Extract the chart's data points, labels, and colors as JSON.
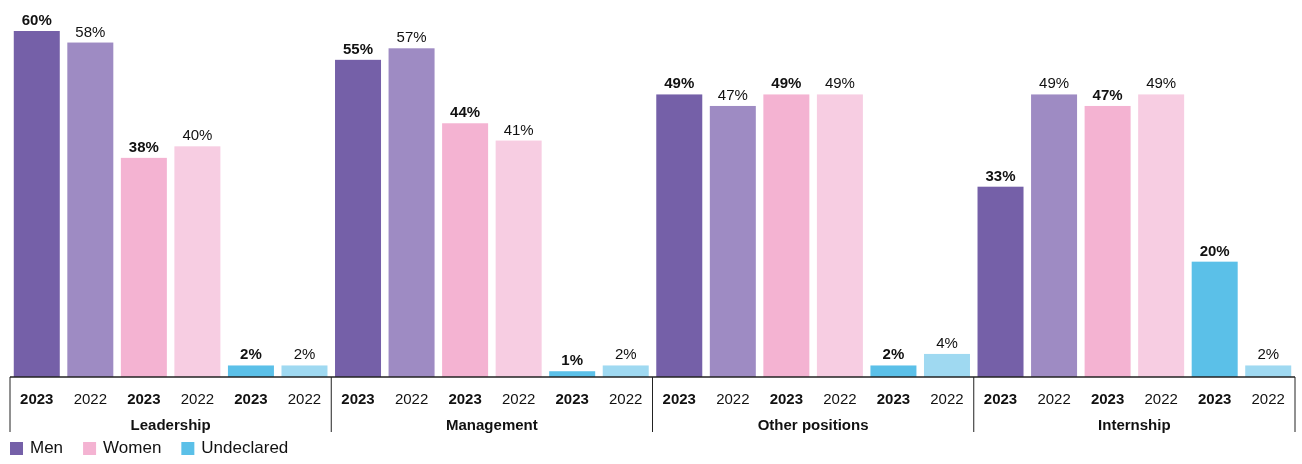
{
  "chart_data": {
    "type": "bar",
    "categories": [
      "2023",
      "2022",
      "2023",
      "2022",
      "2023",
      "2022",
      "2023",
      "2022",
      "2023",
      "2022",
      "2023",
      "2022",
      "2023",
      "2022",
      "2023",
      "2022",
      "2023",
      "2022",
      "2023",
      "2022",
      "2023",
      "2022",
      "2023",
      "2022"
    ],
    "series": [
      {
        "name": "Men",
        "color": "#7560a8",
        "colors": [
          "#7560a8",
          "#9e8bc3",
          null,
          null,
          null,
          null,
          "#7560a8",
          "#9e8bc3",
          null,
          null,
          null,
          null,
          "#7560a8",
          "#9e8bc3",
          null,
          null,
          null,
          null,
          "#7560a8",
          "#9e8bc3",
          null,
          null,
          null,
          null
        ],
        "values": [
          60,
          58,
          null,
          null,
          null,
          null,
          55,
          57,
          null,
          null,
          null,
          null,
          49,
          47,
          null,
          null,
          null,
          null,
          33,
          49,
          null,
          null,
          null,
          null
        ],
        "value_labels": [
          "60%",
          "58%",
          null,
          null,
          null,
          null,
          "55%",
          "57%",
          null,
          null,
          null,
          null,
          "49%",
          "47%",
          null,
          null,
          null,
          null,
          "33%",
          "49%",
          null,
          null,
          null,
          null
        ]
      },
      {
        "name": "Women",
        "color": "#f4b3d2",
        "colors": [
          null,
          null,
          "#f4b3d2",
          "#f7cde2",
          null,
          null,
          null,
          null,
          "#f4b3d2",
          "#f7cde2",
          null,
          null,
          null,
          null,
          "#f4b3d2",
          "#f7cde2",
          null,
          null,
          null,
          null,
          "#f4b3d2",
          "#f7cde2",
          null,
          null
        ],
        "values": [
          null,
          null,
          38,
          40,
          null,
          null,
          null,
          null,
          44,
          41,
          null,
          null,
          null,
          null,
          49,
          49,
          null,
          null,
          null,
          null,
          47,
          49,
          null,
          null
        ],
        "value_labels": [
          null,
          null,
          "38%",
          "40%",
          null,
          null,
          null,
          null,
          "44%",
          "41%",
          null,
          null,
          null,
          null,
          "49%",
          "49%",
          null,
          null,
          null,
          null,
          "47%",
          "49%",
          null,
          null
        ]
      },
      {
        "name": "Undeclared",
        "color": "#5bc0e8",
        "colors": [
          null,
          null,
          null,
          null,
          "#5bc0e8",
          "#9fd9f1",
          null,
          null,
          null,
          null,
          "#5bc0e8",
          "#9fd9f1",
          null,
          null,
          null,
          null,
          "#5bc0e8",
          "#9fd9f1",
          null,
          null,
          null,
          null,
          "#5bc0e8",
          "#9fd9f1"
        ],
        "values": [
          null,
          null,
          null,
          null,
          2,
          2,
          null,
          null,
          null,
          null,
          1,
          2,
          null,
          null,
          null,
          null,
          2,
          4,
          null,
          null,
          null,
          null,
          20,
          2
        ],
        "value_labels": [
          null,
          null,
          null,
          null,
          "2%",
          "2%",
          null,
          null,
          null,
          null,
          "1%",
          "2%",
          null,
          null,
          null,
          null,
          "2%",
          "4%",
          null,
          null,
          null,
          null,
          "20%",
          "2%"
        ]
      }
    ],
    "annotations": [
      "Leadership",
      "Management",
      "Other positions",
      "Internship"
    ],
    "legend": "bottom left"
  }
}
